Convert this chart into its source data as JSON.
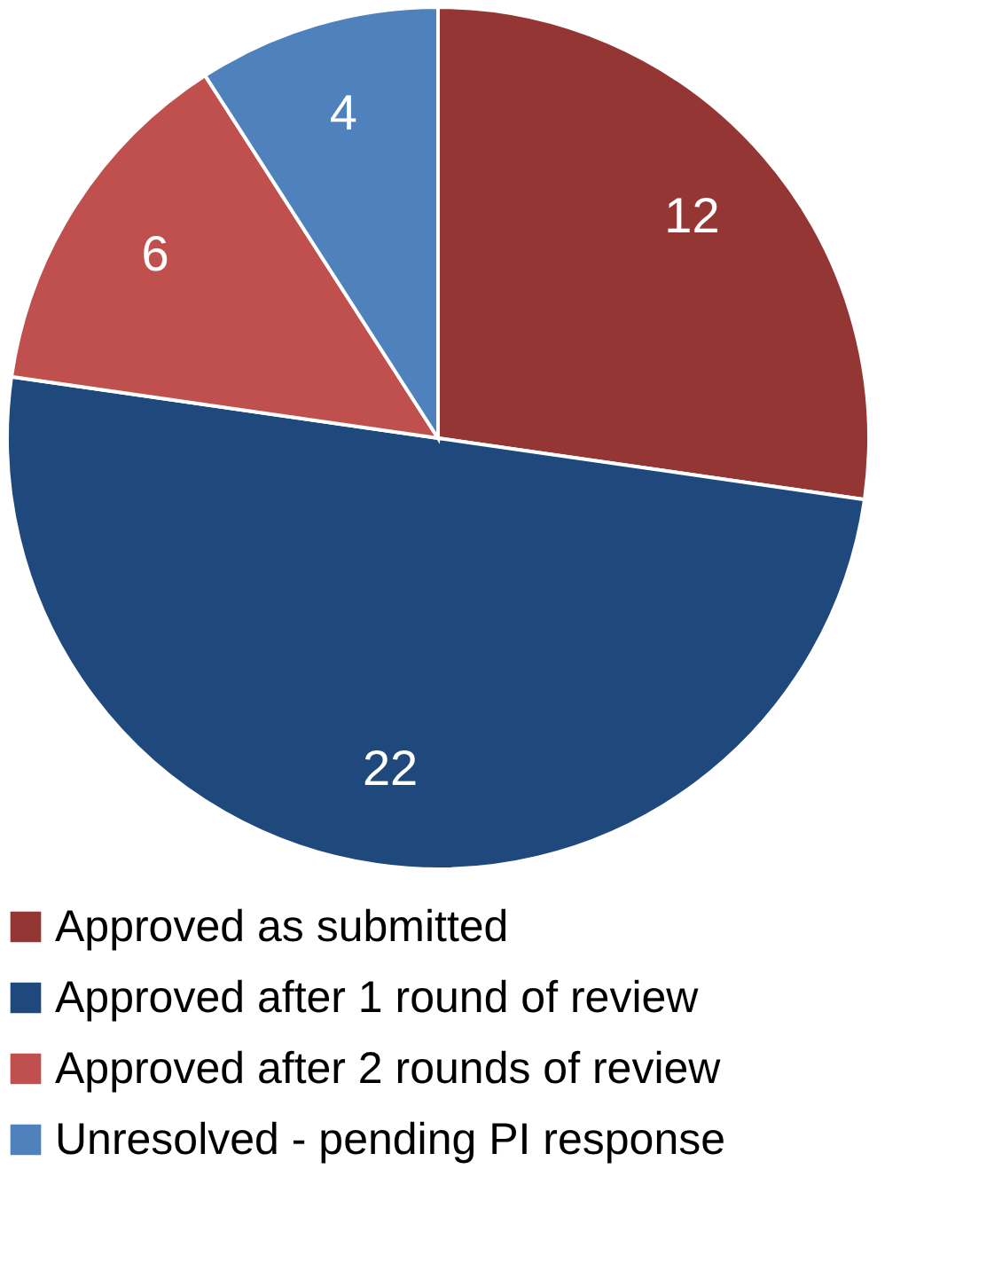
{
  "chart_data": {
    "type": "pie",
    "categories": [
      "Approved as submitted",
      "Approved after 1 round of review",
      "Approved after 2 rounds of review",
      "Unresolved - pending PI response"
    ],
    "values": [
      12,
      22,
      6,
      4
    ],
    "colors": [
      "#943634",
      "#1f497d",
      "#c0504d",
      "#4f81bd"
    ],
    "data_labels": true,
    "legend": "bottom"
  }
}
